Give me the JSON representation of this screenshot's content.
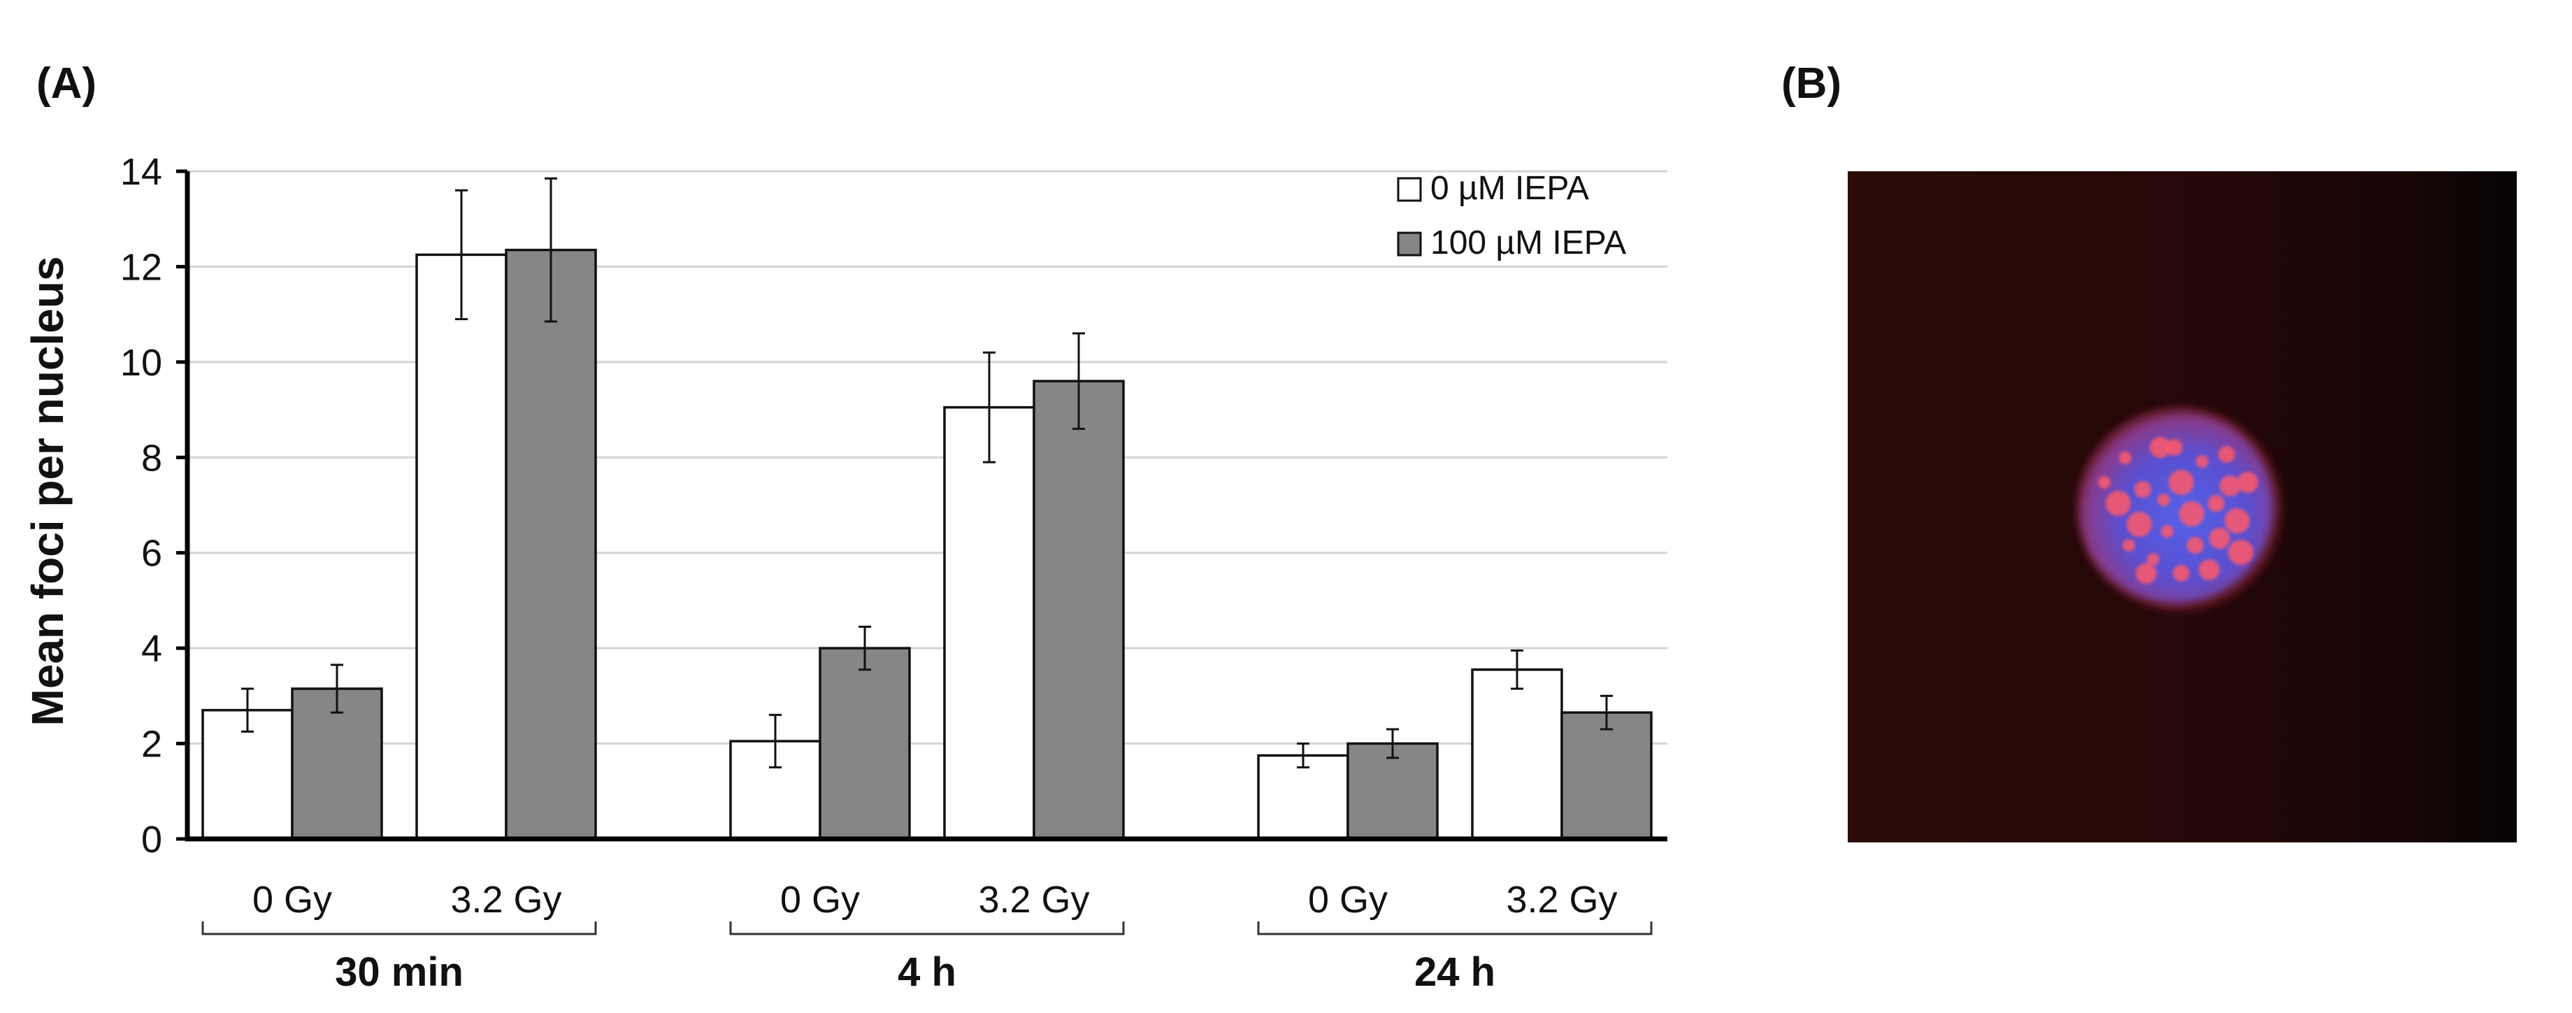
{
  "panel_labels": {
    "a": "(A)",
    "b": "(B)"
  },
  "colors": {
    "series_0": "#ffffff",
    "series_1": "#888685",
    "bar_stroke": "#111111",
    "gridline": "#d4d4d4",
    "axis": "#000000",
    "micrograph_bg": "#2a0808",
    "nucleus_blue": "#5458e0",
    "foci_red": "#ff5a6a"
  },
  "chart_data": {
    "type": "bar",
    "title": "",
    "xlabel": "",
    "ylabel": "Mean foci per nucleus",
    "ylim": [
      0,
      14
    ],
    "y_ticks": [
      "0",
      "2",
      "4",
      "6",
      "8",
      "10",
      "12",
      "14"
    ],
    "grid": true,
    "legend_position": "top-right",
    "groups": [
      {
        "label": "30 min",
        "categories": [
          "0 Gy",
          "3.2 Gy"
        ]
      },
      {
        "label": "4 h",
        "categories": [
          "0 Gy",
          "3.2 Gy"
        ]
      },
      {
        "label": "24 h",
        "categories": [
          "0 Gy",
          "3.2 Gy"
        ]
      }
    ],
    "series": [
      {
        "name": "0 µM IEPA",
        "values": [
          2.7,
          12.25,
          2.05,
          9.05,
          1.75,
          3.55
        ],
        "errors": [
          0.45,
          1.35,
          0.55,
          1.15,
          0.25,
          0.4
        ]
      },
      {
        "name": "100 µM IEPA",
        "values": [
          3.15,
          12.35,
          4.0,
          9.6,
          2.0,
          2.65
        ],
        "errors": [
          0.5,
          1.5,
          0.45,
          1.0,
          0.3,
          0.35
        ]
      }
    ]
  },
  "micrograph": {
    "description_icon": "fluorescence-micrograph"
  }
}
